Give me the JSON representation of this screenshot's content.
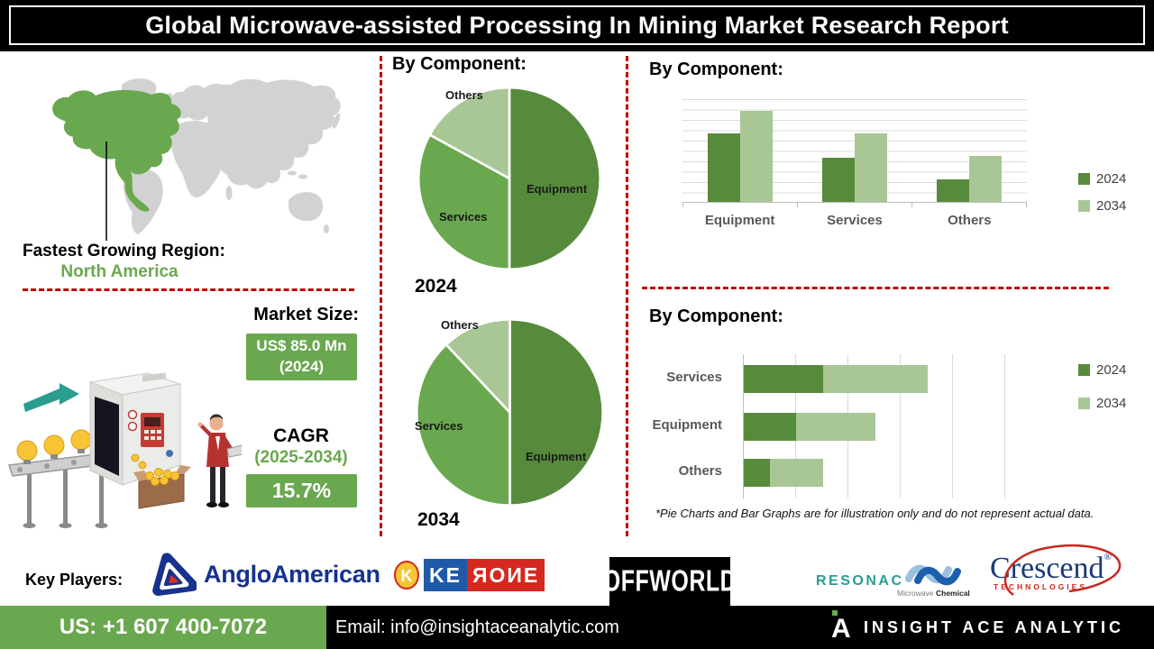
{
  "header": {
    "title": "Global Microwave-assisted Processing In Mining Market Research Report"
  },
  "region": {
    "label": "Fastest Growing Region:",
    "value": "North America"
  },
  "market": {
    "size_label": "Market Size:",
    "size_value": "US$ 85.0 Mn",
    "size_year": "(2024)",
    "cagr_label": "CAGR",
    "cagr_period": "(2025-2034)",
    "cagr_value": "15.7%"
  },
  "chart_data": [
    {
      "type": "pie",
      "title": "By Component:",
      "year_label": "2024",
      "slices": [
        {
          "label": "Equipment",
          "value": 50
        },
        {
          "label": "Services",
          "value": 33
        },
        {
          "label": "Others",
          "value": 17
        }
      ]
    },
    {
      "type": "pie",
      "title": "By Component:",
      "year_label": "2034",
      "slices": [
        {
          "label": "Equipment",
          "value": 50
        },
        {
          "label": "Services",
          "value": 38
        },
        {
          "label": "Others",
          "value": 12
        }
      ]
    },
    {
      "type": "bar",
      "title": "By Component:",
      "categories": [
        "Equipment",
        "Services",
        "Others"
      ],
      "series": [
        {
          "name": "2024",
          "values": [
            66,
            43,
            22
          ]
        },
        {
          "name": "2034",
          "values": [
            88,
            66,
            44
          ]
        }
      ],
      "ylim": [
        0,
        100
      ],
      "grid": true,
      "legend_position": "right"
    },
    {
      "type": "bar-horizontal-stacked",
      "title": "By Component:",
      "categories": [
        "Services",
        "Equipment",
        "Others"
      ],
      "series": [
        {
          "name": "2024",
          "values": [
            1.5,
            1.0,
            0.5
          ]
        },
        {
          "name": "2034",
          "values": [
            2.0,
            1.5,
            1.0
          ]
        }
      ],
      "xlim": [
        0,
        5
      ],
      "grid": true,
      "legend_position": "right"
    }
  ],
  "disclaimer": "*Pie Charts and Bar Graphs are for illustration only and do not represent actual data.",
  "key_players": {
    "label": "Key Players:",
    "companies": [
      "Anglo American",
      "KERONE",
      "OffWorld",
      "RESONAC",
      "Microwave Chemical",
      "Crescend Technologies"
    ]
  },
  "logos": {
    "anglo_text": "AngloAmerican",
    "kerone_left": "KE",
    "kerone_right": "ЯOИE",
    "offworld_text": "OFFWORLD",
    "resonac_text": "RESONAC",
    "microwave_text_light": "Microwave ",
    "microwave_text_bold": "Chemical",
    "crescend_text": "Crescend",
    "crescend_reg": "®",
    "crescend_sub": "TECHNOLOGIES"
  },
  "footer": {
    "phone": "US: +1 607 400-7072",
    "email": "Email: info@insightaceanalytic.com",
    "brand": "INSIGHT ACE ANALYTIC"
  },
  "colors": {
    "green_dark": "#578b3c",
    "green_mid": "#6aa84f",
    "green_light": "#a9c795",
    "accent_red": "#c00000",
    "navy": "#16328c"
  }
}
